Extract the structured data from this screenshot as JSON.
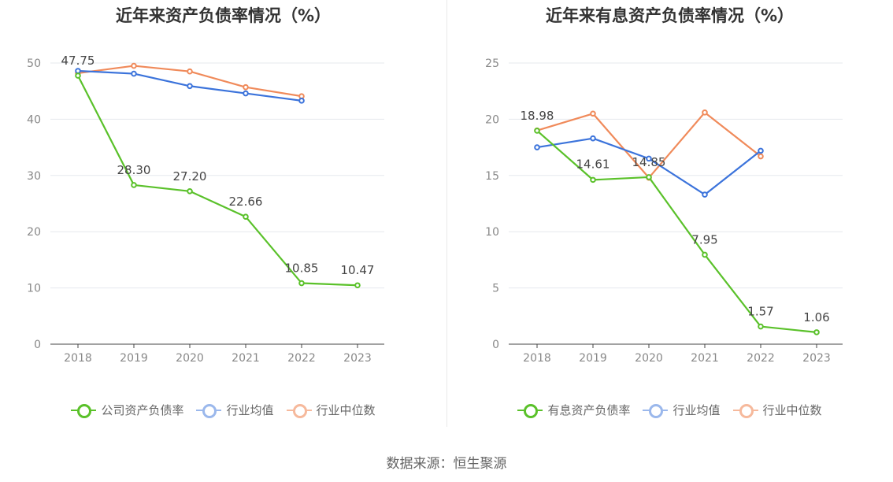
{
  "source": "数据来源：恒生聚源",
  "chart_data": [
    {
      "type": "line",
      "title": "近年来资产负债率情况（%）",
      "categories": [
        "2018",
        "2019",
        "2020",
        "2021",
        "2022",
        "2023"
      ],
      "ylim": [
        0,
        50
      ],
      "yticks": [
        "0",
        "10",
        "20",
        "30",
        "40",
        "50"
      ],
      "grid": true,
      "legend_position": "bottom",
      "series": [
        {
          "name": "公司资产负债率",
          "color": "#5ac12a",
          "values": [
            47.75,
            28.3,
            27.2,
            22.66,
            10.85,
            10.47
          ],
          "labels": [
            "47.75",
            "28.30",
            "27.20",
            "22.66",
            "10.85",
            "10.47"
          ]
        },
        {
          "name": "行业均值",
          "color": "#3b73db",
          "values": [
            48.6,
            48.1,
            45.9,
            44.6,
            43.3,
            null
          ]
        },
        {
          "name": "行业中位数",
          "color": "#f08a5a",
          "values": [
            48.2,
            49.5,
            48.5,
            45.7,
            44.1,
            null
          ]
        }
      ]
    },
    {
      "type": "line",
      "title": "近年来有息资产负债率情况（%）",
      "categories": [
        "2018",
        "2019",
        "2020",
        "2021",
        "2022",
        "2023"
      ],
      "ylim": [
        0,
        25
      ],
      "yticks": [
        "0",
        "5",
        "10",
        "15",
        "20",
        "25"
      ],
      "grid": true,
      "legend_position": "bottom",
      "series": [
        {
          "name": "有息资产负债率",
          "color": "#5ac12a",
          "values": [
            18.98,
            14.61,
            14.85,
            7.95,
            1.57,
            1.06
          ],
          "labels": [
            "18.98",
            "14.61",
            "14.85",
            "7.95",
            "1.57",
            "1.06"
          ]
        },
        {
          "name": "行业均值",
          "color": "#3b73db",
          "values": [
            17.5,
            18.3,
            16.5,
            13.3,
            17.2,
            null
          ]
        },
        {
          "name": "行业中位数",
          "color": "#f08a5a",
          "values": [
            19.0,
            20.5,
            14.8,
            20.6,
            16.7,
            null
          ]
        }
      ]
    }
  ]
}
